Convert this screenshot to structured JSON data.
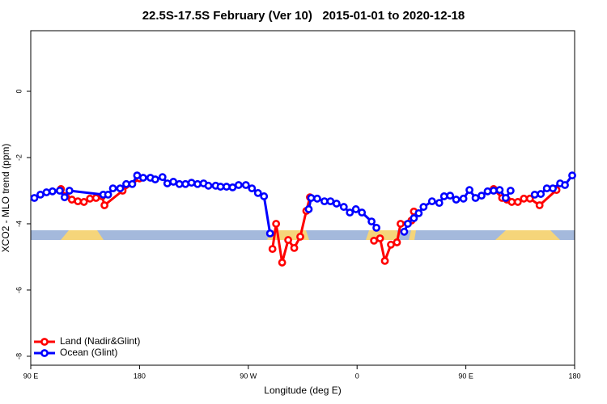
{
  "chart_data": {
    "type": "line",
    "title": "22.5S-17.5S February (Ver 10)   2015-01-01 to 2020-12-18",
    "x_label": "Longitude (deg E)",
    "y_label": "XCO2 - MLO trend (ppm)",
    "xlim": [
      90,
      540
    ],
    "xticks": [
      {
        "value": 90,
        "label": "90 E"
      },
      180,
      {
        "value": 270,
        "label": "90 W"
      },
      {
        "value": 360,
        "label": "0"
      },
      {
        "value": 450,
        "label": "90 E"
      },
      {
        "value": 540,
        "label": "180"
      }
    ],
    "ylim": [
      -8.27,
      1.83
    ],
    "yticks": [
      -8,
      -6,
      -4,
      -2,
      0
    ],
    "legend": "bottomleft",
    "series": [
      {
        "name": "Land (Nadir&Glint)",
        "color": "#ff0000",
        "x": [
          115,
          119,
          124,
          129,
          134,
          139,
          144,
          149,
          151,
          166,
          180,
          200,
          290,
          293,
          298,
          303,
          308,
          313,
          318,
          321,
          350,
          374,
          379,
          383,
          388,
          393,
          396,
          405,
          407,
          450,
          473,
          480,
          484,
          488,
          493,
          498,
          503,
          511,
          525
        ],
        "values": [
          -2.95,
          -3.17,
          -3.27,
          -3.32,
          -3.34,
          -3.24,
          -3.22,
          -3.17,
          -3.44,
          -3.0,
          -2.63,
          null,
          -4.76,
          -4.0,
          -5.17,
          -4.49,
          -4.73,
          -4.39,
          -3.61,
          -3.2,
          null,
          -4.51,
          -4.44,
          -5.12,
          -4.63,
          -4.56,
          -4.0,
          -3.9,
          -3.63,
          null,
          -2.95,
          -3.22,
          -3.27,
          -3.34,
          -3.34,
          -3.24,
          -3.24,
          -3.44,
          -2.98
        ]
      },
      {
        "name": "Ocean (Glint)",
        "color": "#0000ff",
        "x": [
          93,
          98,
          103,
          108,
          114,
          118,
          122,
          150,
          154,
          158,
          164,
          169,
          174,
          178,
          183,
          189,
          193,
          199,
          203,
          208,
          213,
          218,
          223,
          228,
          233,
          237,
          243,
          247,
          252,
          257,
          262,
          268,
          273,
          278,
          283,
          288,
          300,
          320,
          322,
          327,
          333,
          338,
          343,
          349,
          354,
          359,
          364,
          372,
          376,
          390,
          399,
          402,
          407,
          411,
          415,
          422,
          428,
          432,
          437,
          442,
          448,
          453,
          458,
          463,
          468,
          473,
          478,
          483,
          487,
          500,
          507,
          512,
          517,
          522,
          528,
          532,
          538
        ],
        "values": [
          -3.22,
          -3.12,
          -3.05,
          -3.02,
          -3.0,
          -3.2,
          -3.0,
          -3.12,
          -3.12,
          -2.93,
          -2.93,
          -2.8,
          -2.8,
          -2.54,
          -2.61,
          -2.61,
          -2.66,
          -2.59,
          -2.78,
          -2.73,
          -2.8,
          -2.8,
          -2.76,
          -2.8,
          -2.78,
          -2.85,
          -2.85,
          -2.88,
          -2.88,
          -2.9,
          -2.83,
          -2.83,
          -2.93,
          -3.07,
          -3.17,
          -4.29,
          null,
          -3.56,
          -3.22,
          -3.24,
          -3.32,
          -3.32,
          -3.39,
          -3.49,
          -3.66,
          -3.56,
          -3.66,
          -3.93,
          -4.12,
          null,
          -4.24,
          -4.0,
          -3.83,
          -3.68,
          -3.49,
          -3.32,
          -3.37,
          -3.17,
          -3.15,
          -3.27,
          -3.24,
          -2.98,
          -3.22,
          -3.15,
          -3.02,
          -3.0,
          -2.98,
          -3.22,
          -3.0,
          null,
          -3.12,
          -3.1,
          -2.93,
          -2.93,
          -2.78,
          -2.83,
          -2.54
        ]
      }
    ]
  }
}
